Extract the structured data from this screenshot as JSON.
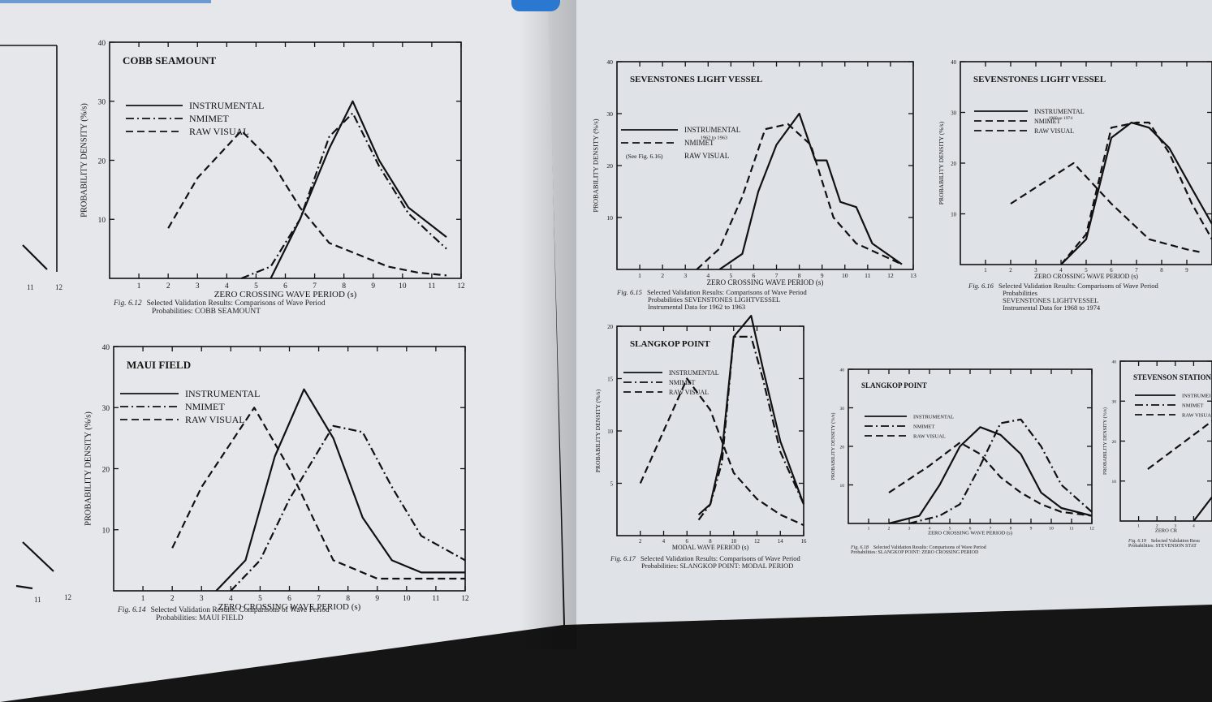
{
  "chart_data": [
    {
      "type": "line",
      "id": "fig-6-12",
      "title": "COBB SEAMOUNT",
      "xlabel": "ZERO CROSSING WAVE PERIOD (s)",
      "ylabel": "PROBABILITY DENSITY (%/s)",
      "xlim": [
        0,
        12
      ],
      "ylim": [
        0,
        40
      ],
      "xticks": [
        1,
        2,
        3,
        4,
        5,
        6,
        7,
        8,
        9,
        10,
        11,
        12
      ],
      "yticks": [
        10,
        20,
        30,
        40
      ],
      "legend": [
        {
          "name": "INSTRUMENTAL",
          "dash": "solid"
        },
        {
          "name": "NMIMET",
          "dash": "dashdot"
        },
        {
          "name": "RAW VISUAL",
          "dash": "dash"
        }
      ],
      "series": [
        {
          "name": "INSTRUMENTAL",
          "dash": "solid",
          "x": [
            5.5,
            6.5,
            7.5,
            8.3,
            9.2,
            10.2,
            11.5
          ],
          "y": [
            0,
            10,
            22,
            30,
            20,
            12,
            7
          ]
        },
        {
          "name": "NMIMET",
          "dash": "dashdot",
          "x": [
            4.5,
            5.5,
            6.5,
            7.5,
            8.3,
            9.2,
            10.2,
            11.5
          ],
          "y": [
            0,
            2,
            10,
            24,
            28,
            19,
            11,
            5
          ]
        },
        {
          "name": "RAW VISUAL",
          "dash": "dash",
          "x": [
            2,
            3,
            4.5,
            5.5,
            6.5,
            7.5,
            8.5,
            9.5,
            10.5,
            11.5
          ],
          "y": [
            8.5,
            17,
            25,
            20,
            12,
            6,
            4,
            2,
            1,
            0.5
          ]
        }
      ],
      "caption": {
        "fig": "Fig. 6.12",
        "lines": [
          "Selected Validation Results: Comparisons of Wave Period",
          "Probabilities: COBB SEAMOUNT"
        ]
      }
    },
    {
      "type": "line",
      "id": "fig-6-14",
      "title": "MAUI FIELD",
      "xlabel": "ZERO CROSSING WAVE PERIOD (s)",
      "ylabel": "PROBABILITY DENSITY (%/s)",
      "xlim": [
        0,
        12
      ],
      "ylim": [
        0,
        40
      ],
      "xticks": [
        1,
        2,
        3,
        4,
        5,
        6,
        7,
        8,
        9,
        10,
        11,
        12
      ],
      "yticks": [
        10,
        20,
        30,
        40
      ],
      "legend": [
        {
          "name": "INSTRUMENTAL",
          "dash": "solid"
        },
        {
          "name": "NMIMET",
          "dash": "dashdot"
        },
        {
          "name": "RAW VISUAL",
          "dash": "dash"
        }
      ],
      "series": [
        {
          "name": "INSTRUMENTAL",
          "dash": "solid",
          "x": [
            3.5,
            4.5,
            5.5,
            6.5,
            7.5,
            8.5,
            9.5,
            10.5,
            12
          ],
          "y": [
            0,
            5,
            22,
            33,
            25,
            12,
            5,
            3,
            3
          ]
        },
        {
          "name": "NMIMET",
          "dash": "dashdot",
          "x": [
            4,
            5,
            6,
            7.5,
            8.5,
            9.5,
            10.5,
            12
          ],
          "y": [
            0,
            5,
            15,
            27,
            26,
            17,
            9,
            5
          ]
        },
        {
          "name": "RAW VISUAL",
          "dash": "dash",
          "x": [
            2,
            3,
            4.8,
            6,
            7.5,
            9,
            10.5,
            12
          ],
          "y": [
            7,
            17,
            30,
            20,
            5,
            2,
            2,
            2
          ]
        }
      ],
      "caption": {
        "fig": "Fig. 6.14",
        "lines": [
          "Selected Validation Results: Comparisons of Wave Period",
          "Probabilities: MAUI FIELD"
        ]
      }
    },
    {
      "type": "line",
      "id": "fig-6-15",
      "title": "SEVENSTONES LIGHT VESSEL",
      "xlabel": "ZERO CROSSING WAVE PERIOD (s)",
      "ylabel": "PROBABILITY DENSITY (%/s)",
      "xlim": [
        0,
        13
      ],
      "ylim": [
        0,
        40
      ],
      "xticks": [
        1,
        2,
        3,
        4,
        5,
        6,
        7,
        8,
        9,
        10,
        11,
        12,
        13
      ],
      "yticks": [
        10,
        20,
        30,
        40
      ],
      "legend": [
        {
          "name": "INSTRUMENTAL",
          "dash": "solid",
          "note": "1962 to 1963"
        },
        {
          "name": "NMIMET",
          "dash": "dash"
        },
        {
          "name": "RAW VISUAL",
          "dash": "none",
          "note": "(See Fig. 6.16)"
        }
      ],
      "series": [
        {
          "name": "INSTRUMENTAL",
          "dash": "solid",
          "x": [
            4.5,
            5.5,
            6.2,
            7,
            8,
            8.7,
            9.2,
            9.8,
            10.5,
            11.2,
            12.5
          ],
          "y": [
            0,
            3,
            15,
            24,
            30,
            21,
            21,
            13,
            12,
            5,
            1
          ]
        },
        {
          "name": "NMIMET",
          "dash": "dash",
          "x": [
            3.5,
            4.5,
            5.5,
            6.5,
            7.5,
            8.5,
            9.5,
            10.5,
            11.5,
            12.5
          ],
          "y": [
            0,
            4,
            14,
            27,
            28,
            24,
            10,
            5,
            3,
            1
          ]
        }
      ],
      "caption": {
        "fig": "Fig. 6.15",
        "lines": [
          "Selected Validation Results: Comparisons of Wave Period",
          "Probabilities SEVENSTONES LIGHTVESSEL",
          "Instrumental Data for 1962 to 1963"
        ]
      }
    },
    {
      "type": "line",
      "id": "fig-6-16",
      "title": "SEVENSTONES LIGHT VESSEL",
      "xlabel": "ZERO CROSSING WAVE PERIOD (s)",
      "ylabel": "PROBABILITY DENSITY (%/s)",
      "xlim": [
        0,
        10
      ],
      "ylim": [
        0,
        40
      ],
      "xticks": [
        1,
        2,
        3,
        4,
        5,
        6,
        7,
        8,
        9
      ],
      "yticks": [
        10,
        20,
        30,
        40
      ],
      "legend": [
        {
          "name": "INSTRUMENTAL",
          "dash": "solid",
          "note": "1968 to 1974"
        },
        {
          "name": "NMIMET",
          "dash": "dash"
        },
        {
          "name": "RAW VISUAL",
          "dash": "dash"
        }
      ],
      "series": [
        {
          "name": "INSTRUMENTAL",
          "dash": "solid",
          "x": [
            4,
            5,
            6,
            6.8,
            7.5,
            8.3,
            9.2,
            10
          ],
          "y": [
            0,
            5,
            25,
            28,
            27,
            23,
            15,
            8
          ]
        },
        {
          "name": "NMIMET",
          "dash": "dash",
          "x": [
            4,
            5,
            6,
            7,
            7.5,
            8.3,
            9.2,
            10
          ],
          "y": [
            0,
            6,
            27,
            28,
            28,
            22,
            12,
            5
          ]
        },
        {
          "name": "RAW VISUAL",
          "dash": "dash",
          "x": [
            2,
            4.5,
            6,
            7.5,
            9,
            9.5
          ],
          "y": [
            12,
            20,
            12,
            5,
            3,
            2.5
          ]
        }
      ],
      "caption": {
        "fig": "Fig. 6.16",
        "lines": [
          "Selected Validation Results: Comparisons of Wave Period",
          "Probabilities",
          "SEVENSTONES LIGHTVESSEL",
          "Instrumental Data for 1968 to 1974"
        ]
      }
    },
    {
      "type": "line",
      "id": "fig-6-17",
      "title": "SLANGKOP POINT",
      "xlabel": "MODAL WAVE PERIOD (s)",
      "ylabel": "PROBABILITY DENSITY (%/s)",
      "xlim": [
        0,
        16
      ],
      "ylim": [
        0,
        20
      ],
      "xticks": [
        2,
        4,
        6,
        8,
        10,
        12,
        14,
        16
      ],
      "yticks": [
        5,
        10,
        15,
        20
      ],
      "legend": [
        {
          "name": "INSTRUMENTAL",
          "dash": "solid"
        },
        {
          "name": "NMIMET",
          "dash": "dashdot"
        },
        {
          "name": "RAW VISUAL",
          "dash": "dash"
        }
      ],
      "series": [
        {
          "name": "INSTRUMENTAL",
          "dash": "solid",
          "x": [
            7,
            8,
            9,
            10,
            11.5,
            12.5,
            14,
            16
          ],
          "y": [
            2,
            3,
            8,
            19,
            21,
            16,
            9,
            3
          ]
        },
        {
          "name": "NMIMET",
          "dash": "dashdot",
          "x": [
            7,
            8,
            9,
            10,
            11.5,
            12.5,
            14,
            16
          ],
          "y": [
            1.5,
            3,
            7,
            19,
            19,
            15,
            8,
            3
          ]
        },
        {
          "name": "RAW VISUAL",
          "dash": "dash",
          "x": [
            2,
            4,
            6,
            8,
            10,
            12,
            14,
            16
          ],
          "y": [
            5,
            10,
            15,
            12,
            6,
            3.5,
            2,
            1
          ]
        }
      ],
      "caption": {
        "fig": "Fig. 6.17",
        "lines": [
          "Selected Validation Results: Comparisons of Wave Period",
          "Probabilities: SLANGKOP POINT: MODAL PERIOD"
        ]
      }
    },
    {
      "type": "line",
      "id": "fig-6-18",
      "title": "SLANGKOP POINT",
      "xlabel": "ZERO CROSSING WAVE PERIOD (s)",
      "ylabel": "PROBABILITY DENSITY (%/s)",
      "xlim": [
        0,
        12
      ],
      "ylim": [
        0,
        40
      ],
      "xticks": [
        1,
        2,
        3,
        4,
        5,
        6,
        7,
        8,
        9,
        10,
        11,
        12
      ],
      "yticks": [
        10,
        20,
        30,
        40
      ],
      "legend": [
        {
          "name": "INSTRUMENTAL",
          "dash": "solid"
        },
        {
          "name": "NMIMET",
          "dash": "dashdot"
        },
        {
          "name": "RAW VISUAL",
          "dash": "dash"
        }
      ],
      "series": [
        {
          "name": "INSTRUMENTAL",
          "dash": "solid",
          "x": [
            2,
            3.5,
            4.5,
            5.5,
            6.5,
            7.5,
            8.5,
            9.5,
            10.5,
            12
          ],
          "y": [
            0,
            2,
            10,
            20,
            25,
            23,
            18,
            8,
            4,
            2
          ]
        },
        {
          "name": "NMIMET",
          "dash": "dashdot",
          "x": [
            3,
            4.5,
            5.5,
            6.5,
            7.5,
            8.5,
            9.5,
            10.5,
            12
          ],
          "y": [
            0,
            2,
            5,
            15,
            26,
            27,
            20,
            10,
            3
          ]
        },
        {
          "name": "RAW VISUAL",
          "dash": "dash",
          "x": [
            2,
            4,
            5.5,
            6.5,
            7.5,
            8.5,
            9.5,
            10.5,
            12
          ],
          "y": [
            8,
            15,
            21,
            18,
            12,
            8,
            5,
            3,
            2
          ]
        }
      ],
      "caption": {
        "fig": "Fig. 6.18",
        "lines": [
          "Selected Validation Results: Comparisons of Wave Period",
          "Probabilities: SLANGKOP POINT: ZERO CROSSING PERIOD"
        ]
      }
    },
    {
      "type": "line",
      "id": "fig-6-19",
      "title": "STEVENSON STATION",
      "xlabel": "ZERO CR",
      "ylabel": "PROBABILITY DENSITY (%/s)",
      "xlim": [
        0,
        5
      ],
      "ylim": [
        0,
        40
      ],
      "xticks": [
        1,
        2,
        3,
        4
      ],
      "yticks": [
        10,
        20,
        30,
        40
      ],
      "legend": [
        {
          "name": "INSTRUMEI",
          "dash": "solid"
        },
        {
          "name": "NMIMET",
          "dash": "dashdot"
        },
        {
          "name": "RAW VISUA",
          "dash": "dash"
        }
      ],
      "series": [
        {
          "name": "RAW VISUAL",
          "dash": "dash",
          "x": [
            1.5,
            5
          ],
          "y": [
            13,
            25
          ]
        },
        {
          "name": "INSTRUMENTAL",
          "dash": "solid",
          "x": [
            4,
            5
          ],
          "y": [
            0,
            6
          ]
        }
      ],
      "caption": {
        "fig": "Fig. 6.19",
        "lines": [
          "Selected Validation Resu",
          "Probabilities: STEVENSON STAT"
        ]
      }
    }
  ],
  "partial_left": {
    "labels": [
      "11",
      "12",
      "11",
      "12"
    ]
  }
}
